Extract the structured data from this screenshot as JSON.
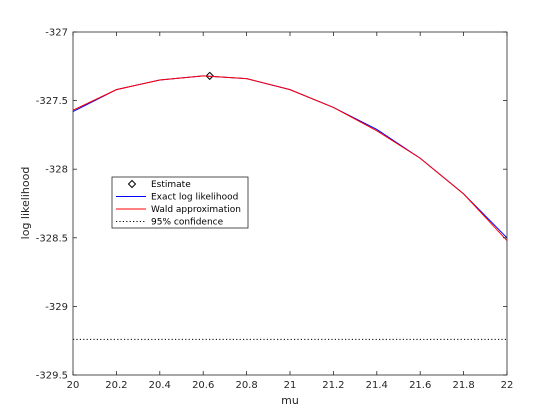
{
  "chart_data": {
    "type": "line",
    "title": "",
    "xlabel": "mu",
    "ylabel": "log likelihood",
    "xlim": [
      20,
      22
    ],
    "ylim": [
      -329.5,
      -327
    ],
    "x_ticks": [
      20,
      20.2,
      20.4,
      20.6,
      20.8,
      21,
      21.2,
      21.4,
      21.6,
      21.8,
      22
    ],
    "x_tick_labels": [
      "20",
      "20.2",
      "20.4",
      "20.6",
      "20.8",
      "21",
      "21.2",
      "21.4",
      "21.6",
      "21.8",
      "22"
    ],
    "y_ticks": [
      -327,
      -327.5,
      -328,
      -328.5,
      -329,
      -329.5
    ],
    "y_tick_labels": [
      "-327",
      "-327.5",
      "-328",
      "-328.5",
      "-329",
      "-329.5"
    ],
    "grid": false,
    "legend_placement": "middle-left",
    "series": [
      {
        "name": "Estimate",
        "style": "marker",
        "color": "#000000",
        "x": [
          20.63
        ],
        "y": [
          -327.32
        ]
      },
      {
        "name": "Exact log likelihood",
        "style": "line",
        "color": "#0000ff",
        "x": [
          20,
          20.2,
          20.4,
          20.6,
          20.8,
          21,
          21.2,
          21.4,
          21.6,
          21.8,
          22
        ],
        "y": [
          -327.58,
          -327.42,
          -327.35,
          -327.32,
          -327.34,
          -327.42,
          -327.55,
          -327.71,
          -327.92,
          -328.18,
          -328.5
        ]
      },
      {
        "name": "Wald approximation",
        "style": "line",
        "color": "#ff0000",
        "x": [
          20,
          20.2,
          20.4,
          20.6,
          20.8,
          21,
          21.2,
          21.4,
          21.6,
          21.8,
          22
        ],
        "y": [
          -327.57,
          -327.42,
          -327.35,
          -327.32,
          -327.34,
          -327.42,
          -327.55,
          -327.72,
          -327.92,
          -328.18,
          -328.52
        ]
      },
      {
        "name": "95% confidence",
        "style": "dotted",
        "color": "#000000",
        "x": [
          20,
          22
        ],
        "y": [
          -329.24,
          -329.24
        ]
      }
    ]
  }
}
